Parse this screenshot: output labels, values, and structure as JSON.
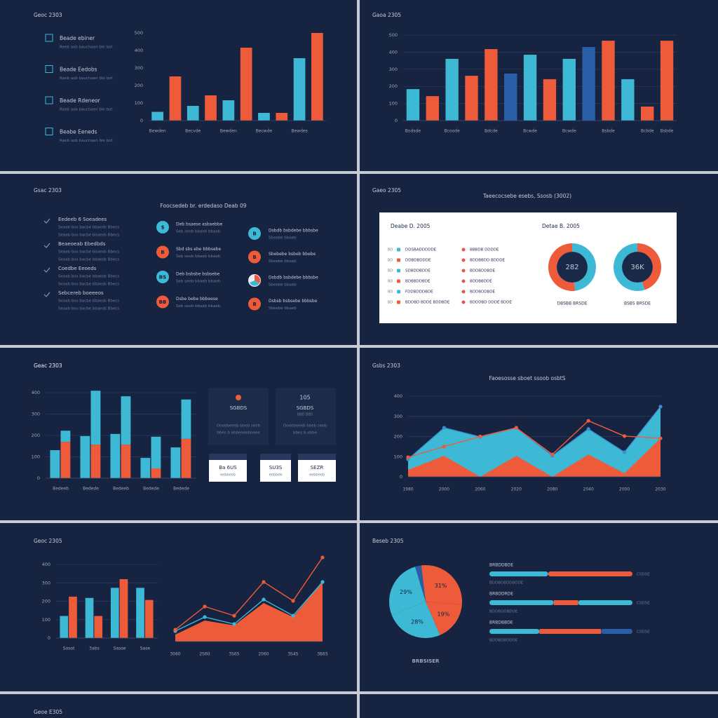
{
  "panels": [
    {
      "title": "Geoc 2303",
      "list": [
        {
          "label": "Beade ebiner",
          "desc": "Reeb aob bauchaen ble bot"
        },
        {
          "label": "Beade Eedobs",
          "desc": "Raeb aob bauchaen ble bot"
        },
        {
          "label": "Beade Rdeneor",
          "desc": "Reeb aob bauchaen ble bot"
        },
        {
          "label": "Beabe Eeneds",
          "desc": "Raeb aob bauchaen ble bot"
        }
      ]
    },
    {
      "title": "Gaoa 2305"
    },
    {
      "title": "Gsac 2303",
      "subtitle": "Foocsedeb br. erdedaso Deab 09",
      "list": [
        {
          "label": "Eedeeb 6 Soeadees",
          "desc": "Seaab bso bacbe bbaeds Bbecs"
        },
        {
          "label": "Beaeoeab Ebedbds",
          "desc": "Seaab bso bacbe bbaeds Bbecs"
        },
        {
          "label": "Coedbe Eeoeds",
          "desc": "Seaab bso bacbe bbaeds Bbecs"
        },
        {
          "label": "Sebcereb boeeeos",
          "desc": "Seaab bso bacbe bbaeds Bbecs"
        }
      ],
      "rows": [
        {
          "icon": "$",
          "text": "Deb bsaese asbaebbe",
          "sub": "Seb seeb bbaeb bbaeb"
        },
        {
          "icon": "B",
          "text": "Sbd sbs ebe bbbsebe",
          "sub": "Seb seeb bbaeb bbaeb"
        },
        {
          "icon": "BS",
          "text": "Deb bsbsbe bsbsebe",
          "sub": "Seb seeb bbaeb bbaeb"
        },
        {
          "icon": "BB",
          "text": "Dsbe bebe bbbeese",
          "sub": "Seb seeb bbaeb bbaeb"
        }
      ],
      "rows2": [
        {
          "icon": "B",
          "text": "Dsbdb bsbdebe bbbsbe",
          "sub": "Sbeebe bbaeb"
        },
        {
          "icon": "B",
          "text": "Sbebebe bsbeb bbebe",
          "sub": "Sbeebe bbaeb"
        },
        {
          "text": "Dsbdb bsbdebe bbbsbe",
          "sub": "Sbeebe bbaeb"
        },
        {
          "icon": "B",
          "text": "Dsbsb bsbsebe bbbsbe",
          "sub": "Sbeebe bbaeb"
        }
      ]
    },
    {
      "title": "Gaeo 2305",
      "subtitle": "Taeecocsebe esebs, Ssosb (3002)",
      "card_title": "Deabe D. 2005",
      "table": [
        {
          "tag": "BD",
          "a": "DDSBADDDDDE",
          "b": "BBBDB DDDDE"
        },
        {
          "tag": "BD",
          "a": "DDBDBDDDE",
          "b": "BDDBBDD BDDDE"
        },
        {
          "tag": "BD",
          "a": "SDBDDBDDE",
          "b": "BDDBDDBDE"
        },
        {
          "tag": "BD",
          "a": "BDBBDDBDE",
          "b": "BDDBBDDE"
        },
        {
          "tag": "BD",
          "a": "FDDBDDDBDE",
          "b": "BDDBDDBDE"
        },
        {
          "tag": "BD",
          "a": "BDDBD BDDE BDDBDE",
          "b": "BDDDBD DDDE BDDE"
        }
      ]
    },
    {
      "title": "Geac 2303",
      "cards": [
        {
          "title": "SGBDS",
          "lines": [
            "Ooeebeeeb bbeb seeb",
            "bbes b ebbeeeebbeee"
          ]
        },
        {
          "badge": "105",
          "title": "SGBDS",
          "note": "BBD BBS",
          "lines": [
            "Ooeebeeeb bbeb seeb",
            "bbes b ebbe"
          ]
        }
      ],
      "chips": [
        {
          "title": "Ba 6US",
          "sub": "eebbeeb"
        },
        {
          "title": "SU3S",
          "sub": "eebbeb"
        },
        {
          "title": "SEZR",
          "sub": "eebbeeb"
        }
      ]
    },
    {
      "title": "Gsbs 2303",
      "subtitle": "Faoesosse sboet ssoob osbtS"
    },
    {
      "title": "Geoc 2305"
    },
    {
      "title": "Beseb 2305"
    },
    {
      "title": "Geoe E305"
    }
  ],
  "chart_data": [
    {
      "type": "bar",
      "categories": [
        "Bewden",
        null,
        "Becvde",
        null,
        "Bewden",
        null,
        "Becwde",
        null,
        "Bewdes",
        null
      ],
      "values": [
        50,
        252,
        84,
        144,
        116,
        416,
        44,
        44,
        356,
        500
      ],
      "colors": [
        "#3db9d6",
        "#ee5b3b",
        "#3db9d6",
        "#ee5b3b",
        "#3db9d6",
        "#ee5b3b",
        "#3db9d6",
        "#ee5b3b",
        "#3db9d6",
        "#ee5b3b"
      ],
      "ylim": [
        0,
        500
      ],
      "yticks": [
        0,
        100,
        200,
        300,
        400,
        500
      ],
      "grid": false
    },
    {
      "type": "bar",
      "categories": [
        "Bodsde",
        null,
        "Bcoode",
        null,
        "Bdcde",
        null,
        "Bcwde",
        null,
        "Bcwde",
        null,
        "Bsbde",
        null,
        "Bcbde",
        "Bsbde"
      ],
      "values": [
        184,
        143,
        361,
        262,
        418,
        275,
        385,
        242,
        361,
        430,
        467,
        242,
        82,
        467
      ],
      "colors": [
        "#3db9d6",
        "#ee5b3b",
        "#3db9d6",
        "#ee5b3b",
        "#ee5b3b",
        "#2a5fa8",
        "#3db9d6",
        "#ee5b3b",
        "#3db9d6",
        "#2a5fa8",
        "#ee5b3b",
        "#3db9d6",
        "#ee5b3b",
        "#ee5b3b"
      ],
      "ylim": [
        0,
        500
      ],
      "yticks": [
        0,
        100,
        200,
        300,
        400,
        500
      ],
      "grid": true
    },
    {
      "type": "donut",
      "title": "Detae B. 2005",
      "values": [
        48,
        52
      ],
      "colors": [
        "#3db9d6",
        "#ee5b3b"
      ],
      "center_label": "282",
      "label": "DBSBB BRSDE"
    },
    {
      "type": "donut",
      "values": [
        45,
        55
      ],
      "colors": [
        "#ee5b3b",
        "#3db9d6"
      ],
      "center_label": "36K",
      "label": "BSBS BRSDE"
    },
    {
      "type": "bar",
      "categories": [
        "Bedeeb",
        "Bedede",
        "Bedeeb",
        "Bedede",
        "Bedede"
      ],
      "series": [
        {
          "color": "#3db9d6",
          "values": [
            131,
            197,
            207,
            95,
            144
          ],
          "stack": "a"
        },
        {
          "color": "#ee5b3b",
          "values": [
            170,
            157,
            157,
            46,
            184
          ],
          "stack": "b"
        },
        {
          "color": "#3db9d6",
          "values": [
            52,
            252,
            226,
            148,
            184
          ],
          "stack": "b"
        }
      ],
      "ylim": [
        0,
        400
      ],
      "yticks": [
        0,
        100,
        200,
        300,
        400
      ],
      "grid": true
    },
    {
      "type": "area",
      "categories": [
        "1980",
        "2000",
        "2060",
        "2020",
        "2080",
        "2040",
        "2000",
        "2030"
      ],
      "series": [
        {
          "color": "#3db9d6",
          "line_color": "#3a8fd0",
          "values": [
            87,
            243,
            198,
            243,
            104,
            237,
            122,
            348
          ],
          "fill": true,
          "markers": true
        },
        {
          "color": "#ee5b3b",
          "values": [
            35,
            104,
            0,
            104,
            0,
            111,
            17,
            191
          ],
          "fill": true
        },
        {
          "color": "#ee5b3b",
          "values": [
            97,
            150,
            200,
            243,
            111,
            278,
            202,
            191
          ],
          "fill": false,
          "markers": true
        }
      ],
      "ylim": [
        0,
        400
      ],
      "yticks": [
        0,
        100,
        200,
        300,
        400
      ],
      "grid": true
    },
    {
      "type": "bar",
      "categories": [
        "Sosot",
        "3abs",
        "Sasoe",
        "Sase"
      ],
      "series": [
        {
          "color": "#3db9d6",
          "values": [
            120,
            218,
            273,
            273
          ]
        },
        {
          "color": "#ee5b3b",
          "values": [
            225,
            120,
            320,
            207
          ]
        }
      ],
      "ylim": [
        0,
        400
      ],
      "yticks": [
        0,
        100,
        200,
        300,
        400
      ],
      "grid": true
    },
    {
      "type": "area",
      "categories": [
        "3060",
        "2S60",
        "3S65",
        "2060",
        "3S45",
        "3B65"
      ],
      "series": [
        {
          "color": "#ee5b3b",
          "values": [
            32,
            96,
            74,
            176,
            112,
            272
          ],
          "fill": true
        },
        {
          "color": "#3db9d6",
          "values": [
            48,
            112,
            80,
            192,
            118,
            272
          ],
          "fill": false,
          "markers": true
        },
        {
          "color": "#ee5b3b",
          "values": [
            54,
            160,
            118,
            272,
            186,
            384
          ],
          "fill": false,
          "markers": true
        }
      ],
      "ylim": [
        0,
        400
      ],
      "grid": false
    },
    {
      "type": "pie",
      "values": [
        31,
        19,
        28,
        29,
        3
      ],
      "value_labels": [
        "31%",
        "19%",
        "28%",
        "29%",
        null
      ],
      "colors": [
        "#ee5b3b",
        "#ee5b3b",
        "#3db9d6",
        "#3db9d6",
        "#2a5fa8"
      ],
      "label": "BRBSISER"
    },
    {
      "type": "hbar",
      "xlim": [
        0,
        100
      ],
      "rows": [
        {
          "label": "BRBDDBDE",
          "sub": "BDDBDBDDBDDE",
          "end": "C0DSE",
          "values": [
            41,
            59
          ],
          "colors": [
            "#3db9d6",
            "#ee5b3b"
          ]
        },
        {
          "label": "BRBDDRDE",
          "sub": "BDDBDDBDDE",
          "end": "C0DSE",
          "values": [
            45,
            17,
            38
          ],
          "colors": [
            "#3db9d6",
            "#ee5b3b",
            "#3db9d6"
          ]
        },
        {
          "label": "BRBDBBDE",
          "sub": "BDDBDBDDDE",
          "end": "C0DSE",
          "values": [
            35,
            43,
            22
          ],
          "colors": [
            "#3db9d6",
            "#ee5b3b",
            "#2a5fa8"
          ]
        }
      ]
    }
  ]
}
